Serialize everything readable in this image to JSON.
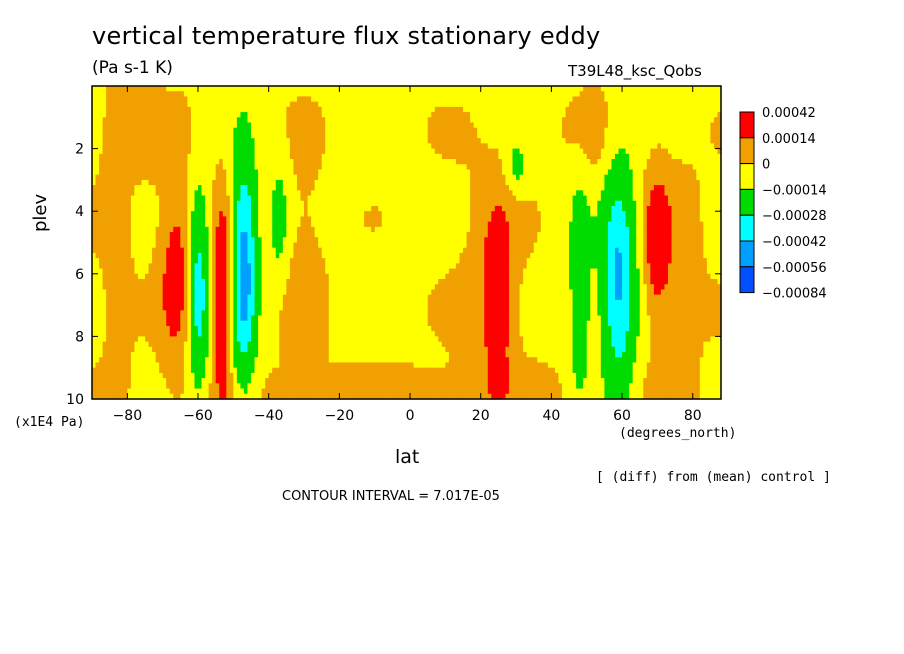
{
  "title": "vertical temperature flux stationary eddy",
  "units": "(Pa s-1 K)",
  "run_name": "T39L48_ksc_Qobs",
  "x_unit_left": "(x1E4 Pa)",
  "x_unit_right": "(degrees_north)",
  "note": "[ (diff) from (mean) control ]",
  "contour_interval_text": "CONTOUR INTERVAL = 7.017E-05",
  "chart_data": {
    "type": "heatmap",
    "title": "vertical temperature flux stationary eddy",
    "xlabel": "lat",
    "ylabel": "plev",
    "xlim": [
      -90,
      88
    ],
    "ylim": [
      10,
      0
    ],
    "x_ticks": [
      -80,
      -60,
      -40,
      -20,
      0,
      20,
      40,
      60,
      80
    ],
    "x_tick_labels": [
      "−80",
      "−60",
      "−40",
      "−20",
      "0",
      "20",
      "40",
      "60",
      "80"
    ],
    "y_ticks": [
      2,
      4,
      6,
      8,
      10
    ],
    "y_tick_labels": [
      "2",
      "4",
      "6",
      "8",
      "10"
    ],
    "colorbar": {
      "levels": [
        "0.00042",
        "0.00014",
        "0",
        "−0.00014",
        "−0.00028",
        "−0.00042",
        "−0.00056",
        "−0.00084"
      ],
      "colors": [
        "#ff0000",
        "#f0a000",
        "#ffff00",
        "#00dc00",
        "#00ffff",
        "#00a0ff",
        "#0050ff"
      ]
    },
    "palette": {
      "pos1": "#f0a000",
      "pos2": "#ff0000",
      "neg1": "#00dc00",
      "neg2": "#00ffff",
      "neg3": "#00a0ff",
      "neg4": "#0050ff",
      "zero": "#ffff00"
    },
    "blobs": [
      {
        "x": -66,
        "y": 6.0,
        "sx": 3.5,
        "sy": 2.0,
        "a": 0.00022
      },
      {
        "x": -83,
        "y": 6.0,
        "sx": 3.0,
        "sy": 3.5,
        "a": 7e-05
      },
      {
        "x": -60,
        "y": 6.5,
        "sx": 2.2,
        "sy": 2.2,
        "a": -0.00038
      },
      {
        "x": -53,
        "y": 6.8,
        "sx": 1.8,
        "sy": 2.2,
        "a": 0.00032
      },
      {
        "x": -47,
        "y": 5.8,
        "sx": 2.6,
        "sy": 2.6,
        "a": -0.0005
      },
      {
        "x": -37,
        "y": 4.2,
        "sx": 2.0,
        "sy": 1.4,
        "a": -0.00016
      },
      {
        "x": -30,
        "y": 6.5,
        "sx": 4.0,
        "sy": 3.0,
        "a": 7e-05
      },
      {
        "x": -10,
        "y": 7.0,
        "sx": 8.0,
        "sy": 4.0,
        "a": -1e-05
      },
      {
        "x": -75,
        "y": 1.6,
        "sx": 10.0,
        "sy": 1.0,
        "a": 6e-05
      },
      {
        "x": 25,
        "y": 6.5,
        "sx": 3.0,
        "sy": 2.0,
        "a": 0.00022
      },
      {
        "x": 22,
        "y": 7.0,
        "sx": 6.0,
        "sy": 3.0,
        "a": 7e-05
      },
      {
        "x": 30,
        "y": 2.6,
        "sx": 2.0,
        "sy": 0.6,
        "a": -0.00015
      },
      {
        "x": 48,
        "y": 6.5,
        "sx": 2.2,
        "sy": 2.6,
        "a": -0.00022
      },
      {
        "x": 59,
        "y": 6.2,
        "sx": 3.5,
        "sy": 2.6,
        "a": -0.00045
      },
      {
        "x": 70,
        "y": 5.0,
        "sx": 2.5,
        "sy": 1.5,
        "a": 0.00024
      },
      {
        "x": 75,
        "y": 6.0,
        "sx": 6.0,
        "sy": 3.0,
        "a": 6e-05
      },
      {
        "x": 52,
        "y": 1.5,
        "sx": 5.0,
        "sy": 1.2,
        "a": 6e-05
      },
      {
        "x": 0,
        "y": 9.7,
        "sx": 40,
        "sy": 0.6,
        "a": 6e-05
      }
    ]
  }
}
